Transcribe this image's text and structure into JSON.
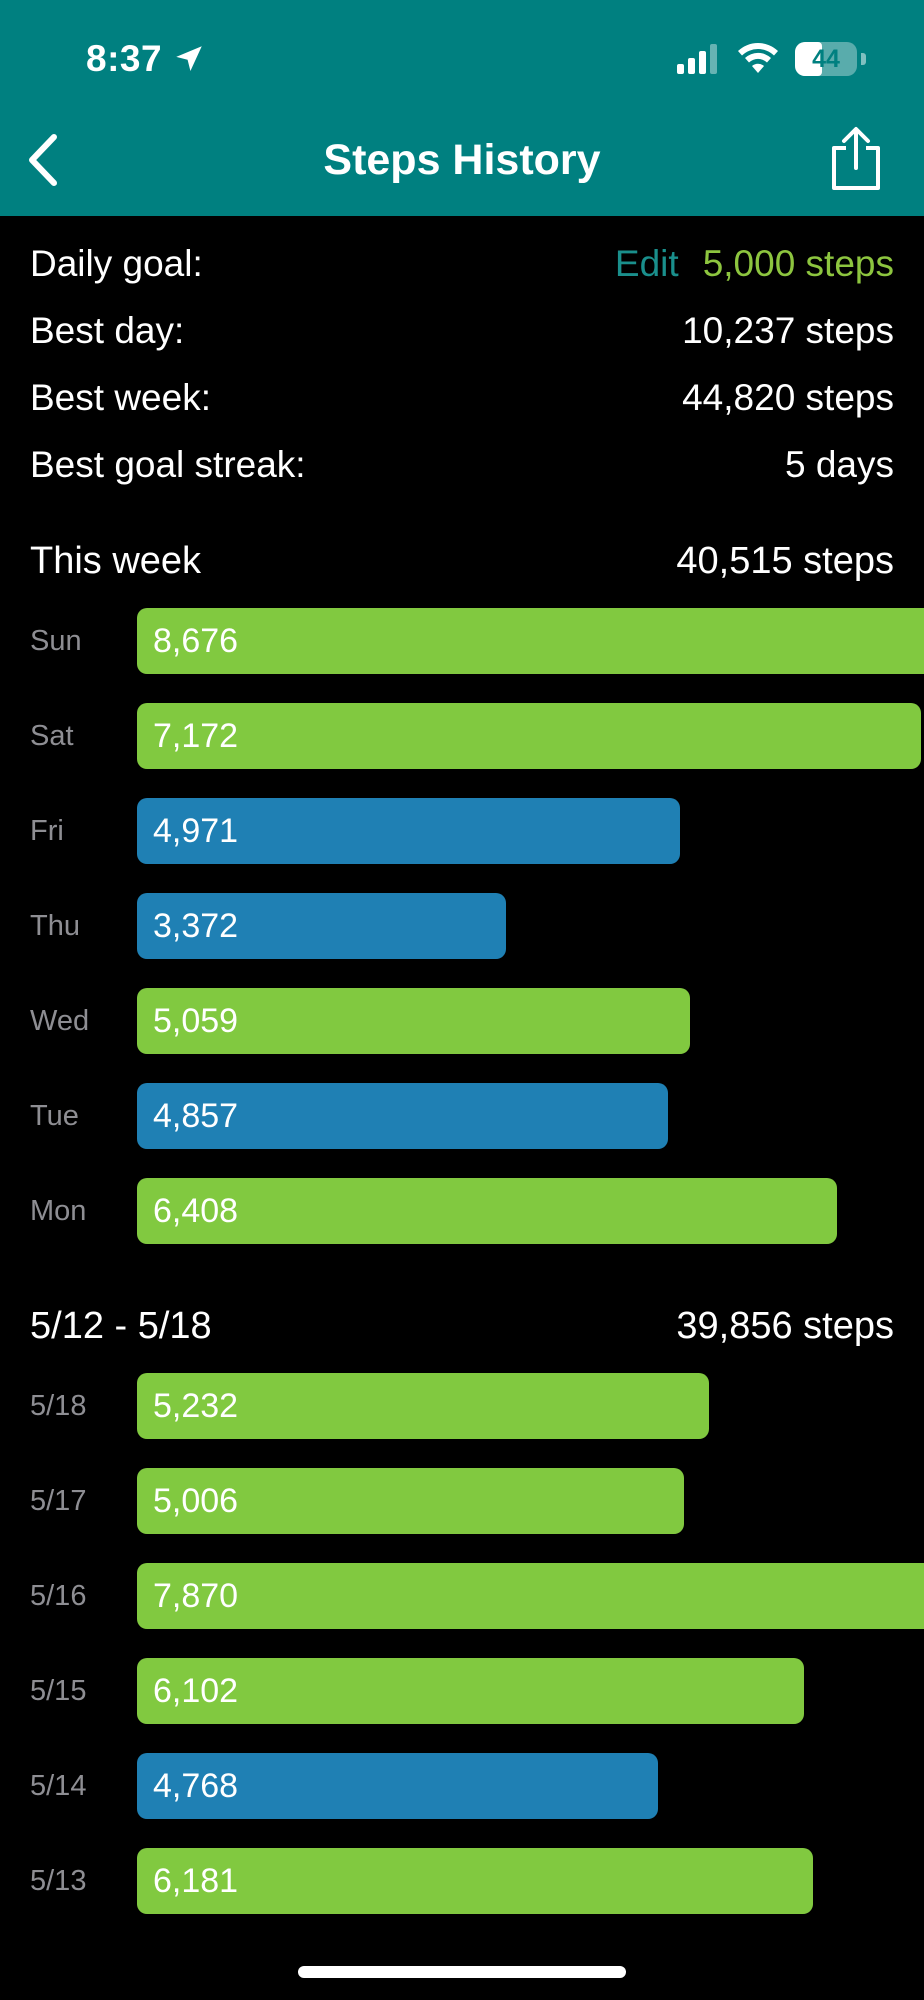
{
  "status_bar": {
    "time": "8:37",
    "battery": "44",
    "battery_level": 0.44
  },
  "nav": {
    "title": "Steps History",
    "back_icon": "chevron-left-icon",
    "share_icon": "share-icon"
  },
  "summary": {
    "daily_goal_label": "Daily goal:",
    "edit_label": "Edit",
    "daily_goal_value": "5,000 steps",
    "best_day_label": "Best day:",
    "best_day_value": "10,237 steps",
    "best_week_label": "Best week:",
    "best_week_value": "44,820 steps",
    "best_streak_label": "Best goal streak:",
    "best_streak_value": "5 days"
  },
  "colors": {
    "header": "#008080",
    "goal_met": "#81c940",
    "goal_missed": "#1f80b4",
    "edit": "#1a8f8c"
  },
  "chart_data": {
    "type": "bar",
    "goal": 5000,
    "full_scale": 7200,
    "weeks": [
      {
        "title": "This week",
        "total": "40,515 steps",
        "days": [
          {
            "label": "Sun",
            "value": 8676,
            "display": "8,676"
          },
          {
            "label": "Sat",
            "value": 7172,
            "display": "7,172"
          },
          {
            "label": "Fri",
            "value": 4971,
            "display": "4,971"
          },
          {
            "label": "Thu",
            "value": 3372,
            "display": "3,372"
          },
          {
            "label": "Wed",
            "value": 5059,
            "display": "5,059"
          },
          {
            "label": "Tue",
            "value": 4857,
            "display": "4,857"
          },
          {
            "label": "Mon",
            "value": 6408,
            "display": "6,408"
          }
        ]
      },
      {
        "title": "5/12 - 5/18",
        "total": "39,856 steps",
        "days": [
          {
            "label": "5/18",
            "value": 5232,
            "display": "5,232"
          },
          {
            "label": "5/17",
            "value": 5006,
            "display": "5,006"
          },
          {
            "label": "5/16",
            "value": 7870,
            "display": "7,870"
          },
          {
            "label": "5/15",
            "value": 6102,
            "display": "6,102"
          },
          {
            "label": "5/14",
            "value": 4768,
            "display": "4,768"
          },
          {
            "label": "5/13",
            "value": 6181,
            "display": "6,181"
          }
        ]
      }
    ]
  }
}
